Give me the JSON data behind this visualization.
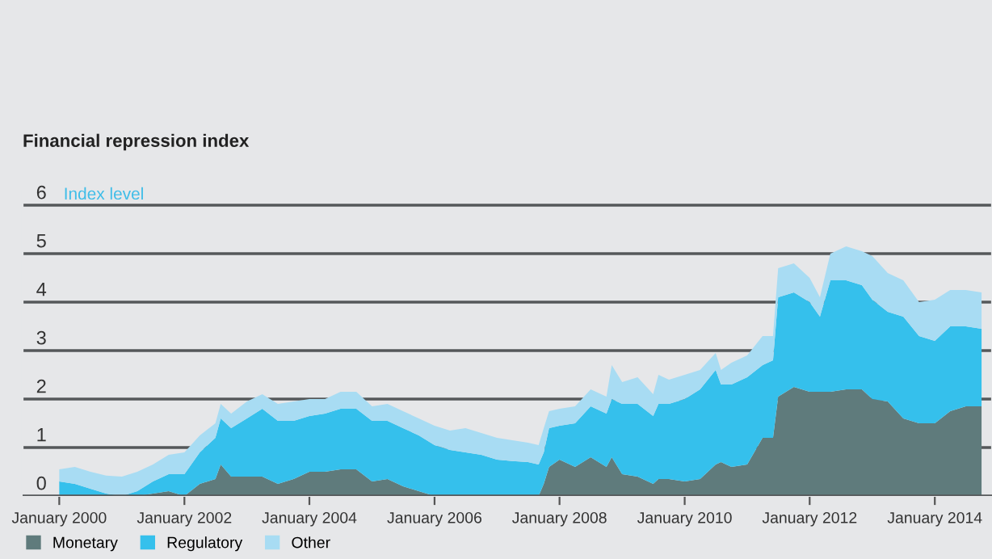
{
  "chart_data": {
    "type": "area",
    "stacked": true,
    "title": "Financial repression index",
    "annotations": [
      "Index level"
    ],
    "x": [
      "2000-01",
      "2000-04",
      "2000-07",
      "2000-10",
      "2001-01",
      "2001-04",
      "2001-07",
      "2001-10",
      "2002-01",
      "2002-04",
      "2002-07",
      "2002-08",
      "2002-10",
      "2003-01",
      "2003-04",
      "2003-07",
      "2003-10",
      "2004-01",
      "2004-04",
      "2004-07",
      "2004-10",
      "2005-01",
      "2005-04",
      "2005-07",
      "2005-10",
      "2006-01",
      "2006-04",
      "2006-07",
      "2006-10",
      "2007-01",
      "2007-04",
      "2007-07",
      "2007-09",
      "2007-10",
      "2007-11",
      "2008-01",
      "2008-04",
      "2008-07",
      "2008-10",
      "2008-11",
      "2009-01",
      "2009-04",
      "2009-07",
      "2009-08",
      "2009-10",
      "2010-01",
      "2010-04",
      "2010-07",
      "2010-08",
      "2010-10",
      "2011-01",
      "2011-04",
      "2011-06",
      "2011-07",
      "2011-10",
      "2012-01",
      "2012-03",
      "2012-05",
      "2012-08",
      "2012-11",
      "2013-01",
      "2013-04",
      "2013-07",
      "2013-10",
      "2014-01",
      "2014-04",
      "2014-07",
      "2014-10"
    ],
    "series": [
      {
        "name": "Monetary",
        "color": "#5f7b7c",
        "values": [
          0,
          0,
          0,
          0,
          0,
          0,
          0.05,
          0.1,
          0,
          0.25,
          0.35,
          0.65,
          0.4,
          0.4,
          0.4,
          0.25,
          0.35,
          0.5,
          0.5,
          0.55,
          0.55,
          0.3,
          0.35,
          0.2,
          0.1,
          0,
          0,
          0,
          0,
          0,
          0,
          0,
          0,
          0.25,
          0.6,
          0.75,
          0.6,
          0.8,
          0.6,
          0.8,
          0.45,
          0.4,
          0.25,
          0.35,
          0.35,
          0.3,
          0.35,
          0.65,
          0.7,
          0.6,
          0.65,
          1.2,
          1.2,
          2.05,
          2.25,
          2.15,
          2.15,
          2.15,
          2.2,
          2.2,
          2.0,
          1.95,
          1.6,
          1.5,
          1.5,
          1.75,
          1.85,
          1.85
        ]
      },
      {
        "name": "Regulatory",
        "color": "#35c0ec",
        "values": [
          0.3,
          0.25,
          0.15,
          0.05,
          0,
          0.1,
          0.25,
          0.35,
          0.45,
          0.65,
          0.85,
          0.95,
          1.0,
          1.2,
          1.4,
          1.3,
          1.2,
          1.15,
          1.2,
          1.25,
          1.25,
          1.25,
          1.2,
          1.2,
          1.15,
          1.05,
          0.95,
          0.9,
          0.85,
          0.75,
          0.72,
          0.7,
          0.65,
          0.65,
          0.8,
          0.7,
          0.9,
          1.05,
          1.1,
          1.2,
          1.45,
          1.5,
          1.4,
          1.55,
          1.55,
          1.7,
          1.85,
          1.95,
          1.6,
          1.7,
          1.8,
          1.5,
          1.6,
          2.05,
          1.95,
          1.85,
          1.55,
          2.3,
          2.25,
          2.15,
          2.05,
          1.85,
          2.1,
          1.8,
          1.7,
          1.75,
          1.65,
          1.6
        ]
      },
      {
        "name": "Other",
        "color": "#a8dcf3",
        "values": [
          0.25,
          0.35,
          0.35,
          0.37,
          0.4,
          0.4,
          0.35,
          0.4,
          0.45,
          0.35,
          0.3,
          0.3,
          0.3,
          0.35,
          0.3,
          0.35,
          0.4,
          0.35,
          0.3,
          0.35,
          0.35,
          0.3,
          0.35,
          0.35,
          0.35,
          0.4,
          0.4,
          0.5,
          0.45,
          0.45,
          0.43,
          0.4,
          0.4,
          0.5,
          0.35,
          0.35,
          0.35,
          0.35,
          0.35,
          0.7,
          0.45,
          0.55,
          0.45,
          0.6,
          0.5,
          0.5,
          0.4,
          0.35,
          0.3,
          0.45,
          0.45,
          0.6,
          0.5,
          0.6,
          0.6,
          0.5,
          0.4,
          0.55,
          0.7,
          0.7,
          0.9,
          0.8,
          0.75,
          0.7,
          0.85,
          0.75,
          0.75,
          0.75
        ]
      }
    ],
    "xlim": [
      "1999-06",
      "2014-12"
    ],
    "xticks": [
      {
        "value": "2000-01",
        "label": "January 2000"
      },
      {
        "value": "2002-01",
        "label": "January 2002"
      },
      {
        "value": "2004-01",
        "label": "January 2004"
      },
      {
        "value": "2006-01",
        "label": "January 2006"
      },
      {
        "value": "2008-01",
        "label": "January 2008"
      },
      {
        "value": "2010-01",
        "label": "January 2010"
      },
      {
        "value": "2012-01",
        "label": "January 2012"
      },
      {
        "value": "2014-01",
        "label": "January 2014"
      }
    ],
    "ylim": [
      0,
      6.3
    ],
    "yticks": [
      0,
      1,
      2,
      3,
      4,
      5,
      6
    ],
    "grid": "y",
    "legend": "bottom"
  }
}
